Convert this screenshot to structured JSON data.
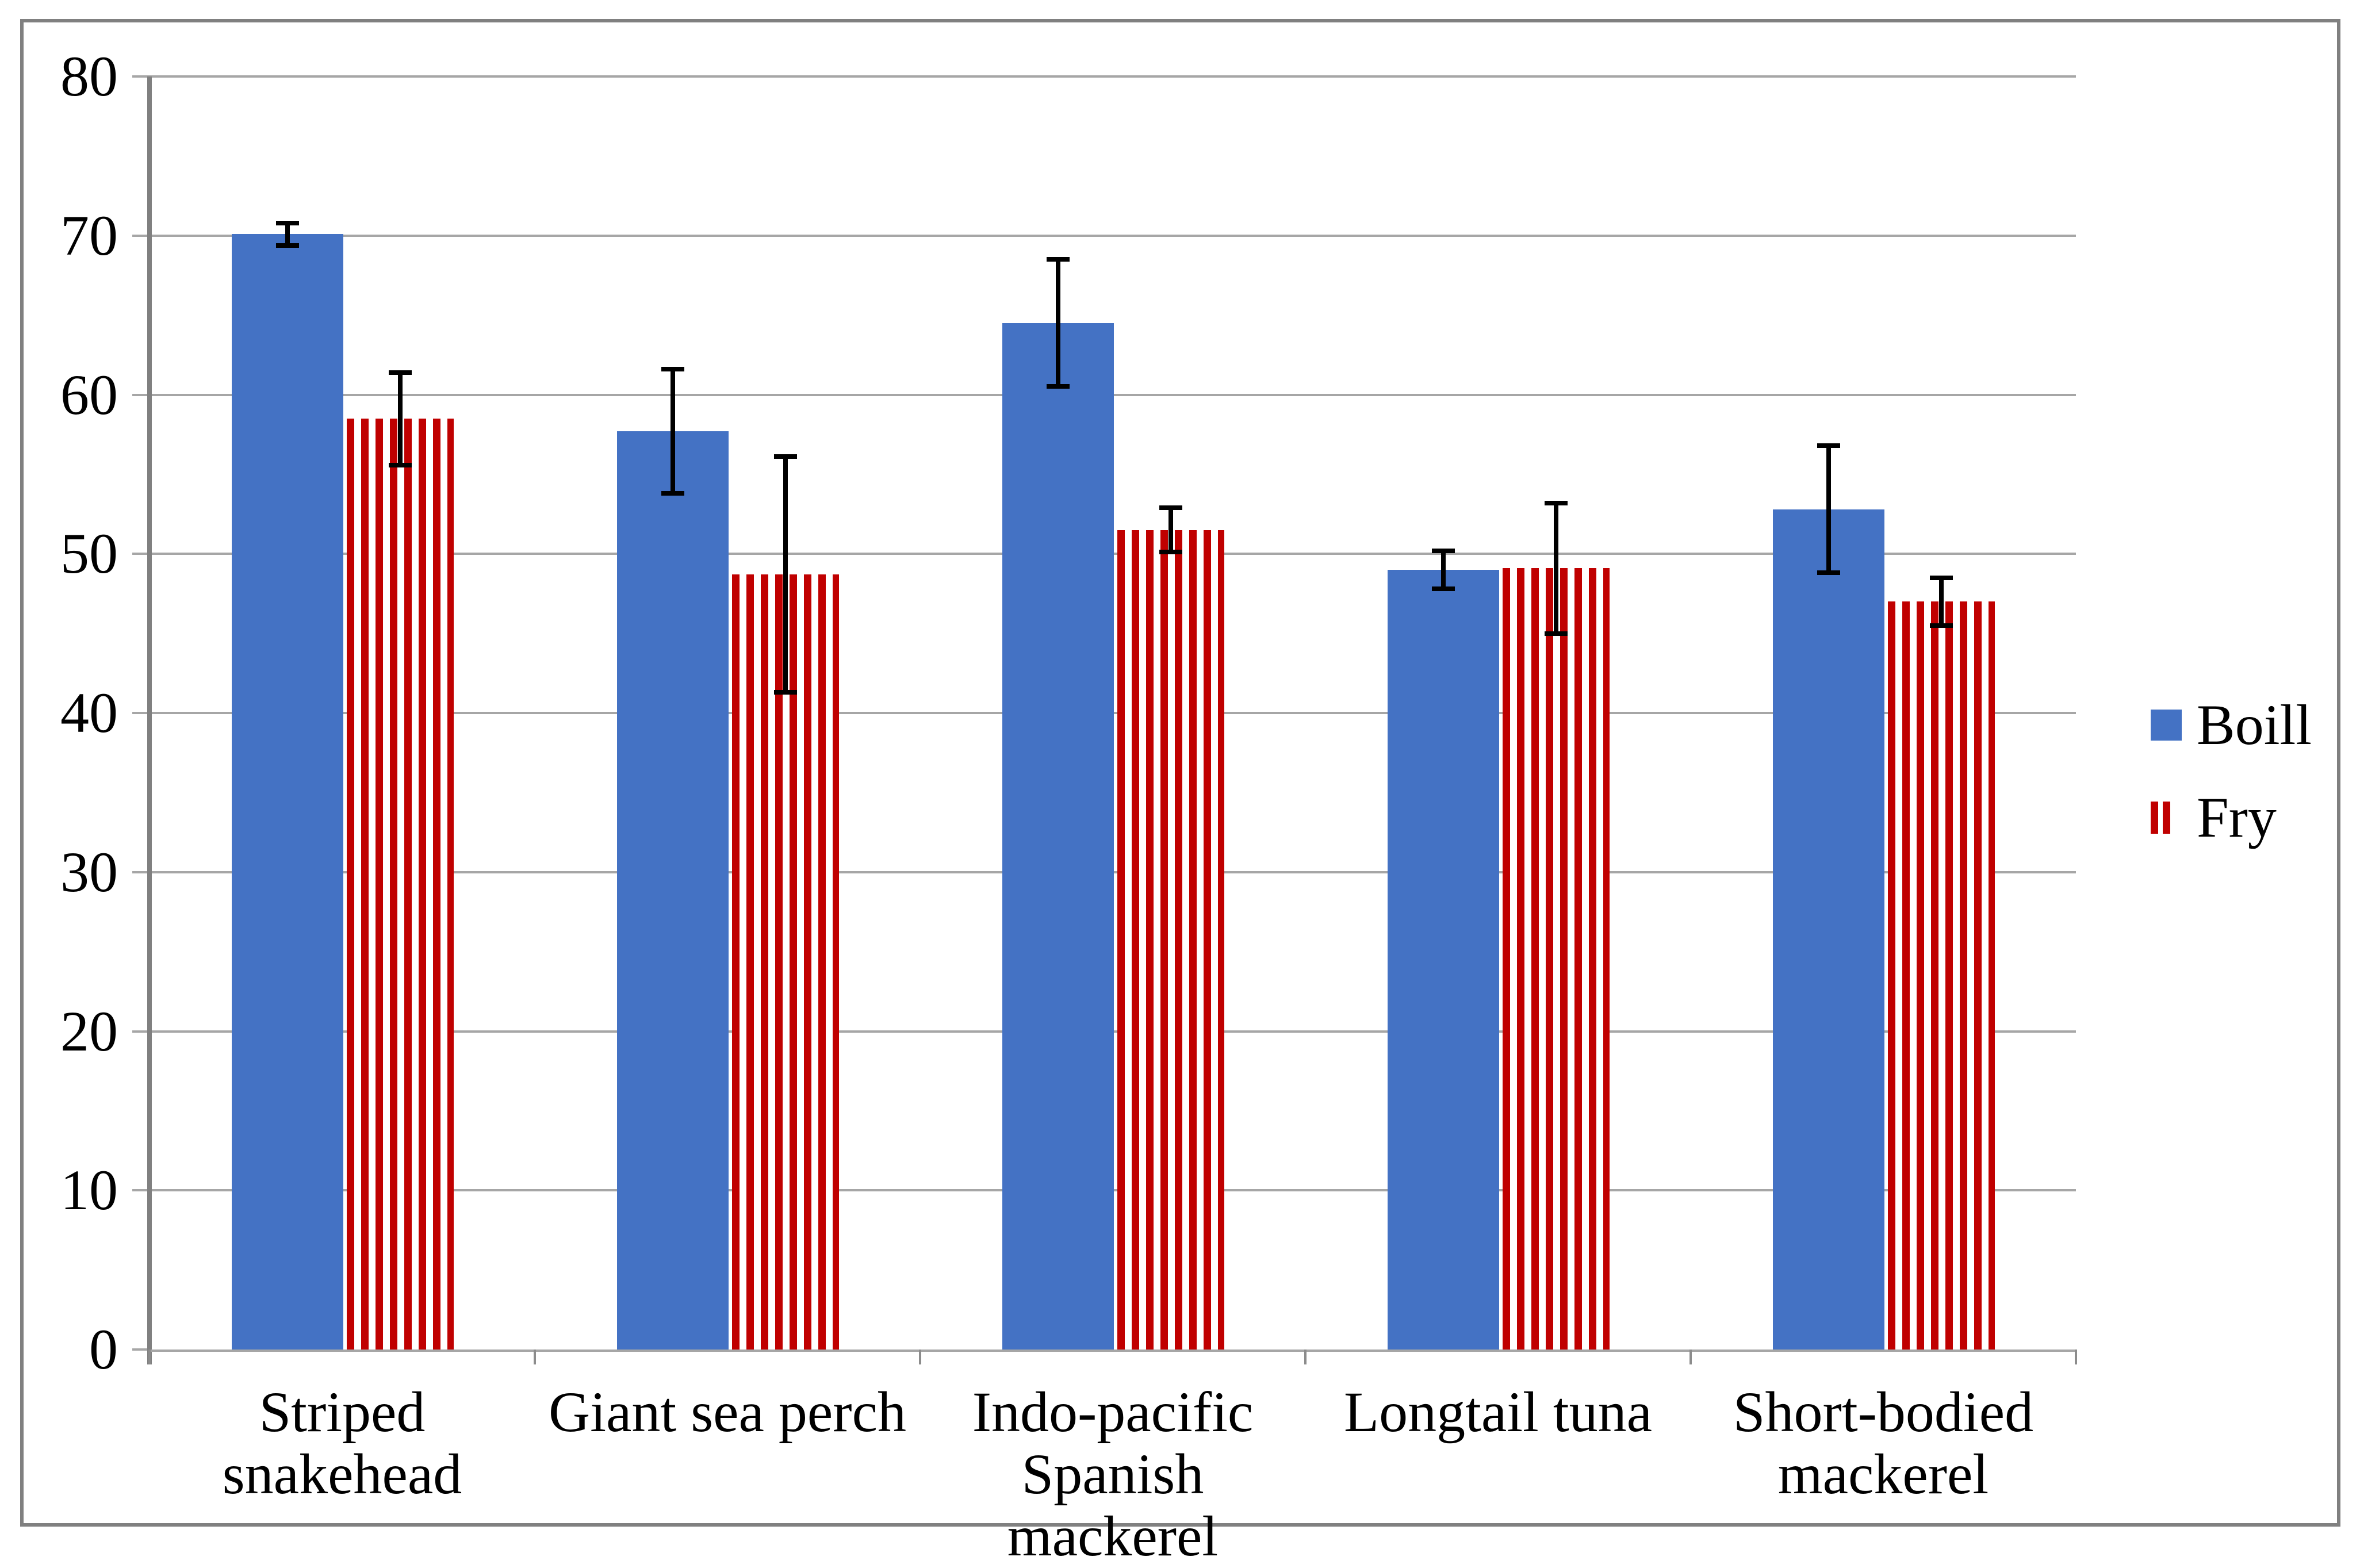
{
  "chart_data": {
    "type": "bar",
    "title": "",
    "categories": [
      "Striped snakehead",
      "Giant sea perch",
      "Indo-pacific\nSpanish mackerel",
      "Longtail tuna",
      "Short-bodied\nmackerel"
    ],
    "series": [
      {
        "name": "Boill",
        "pattern": "solid",
        "color": "#4472c4",
        "values": [
          70.1,
          57.7,
          64.5,
          49.0,
          52.8
        ],
        "errors": [
          0.7,
          3.9,
          4.0,
          1.2,
          4.0
        ]
      },
      {
        "name": "Fry",
        "pattern": "vertical-stripes",
        "color": "#c00000",
        "values": [
          58.5,
          48.7,
          51.5,
          49.1,
          47.0
        ],
        "errors": [
          2.9,
          7.4,
          1.4,
          4.1,
          1.5
        ]
      }
    ],
    "ylim": [
      0,
      80
    ],
    "yticks": [
      0,
      10,
      20,
      30,
      40,
      50,
      60,
      70,
      80
    ],
    "grid": true,
    "error_bars": true,
    "legend_position": "right",
    "background": "#ffffff",
    "frame_color": "#808080",
    "axis_color": "#808080",
    "gridline_color": "#a6a6a6",
    "text_color": "#000000"
  },
  "legend": {
    "items": [
      {
        "label": "Boill"
      },
      {
        "label": "Fry"
      }
    ]
  }
}
